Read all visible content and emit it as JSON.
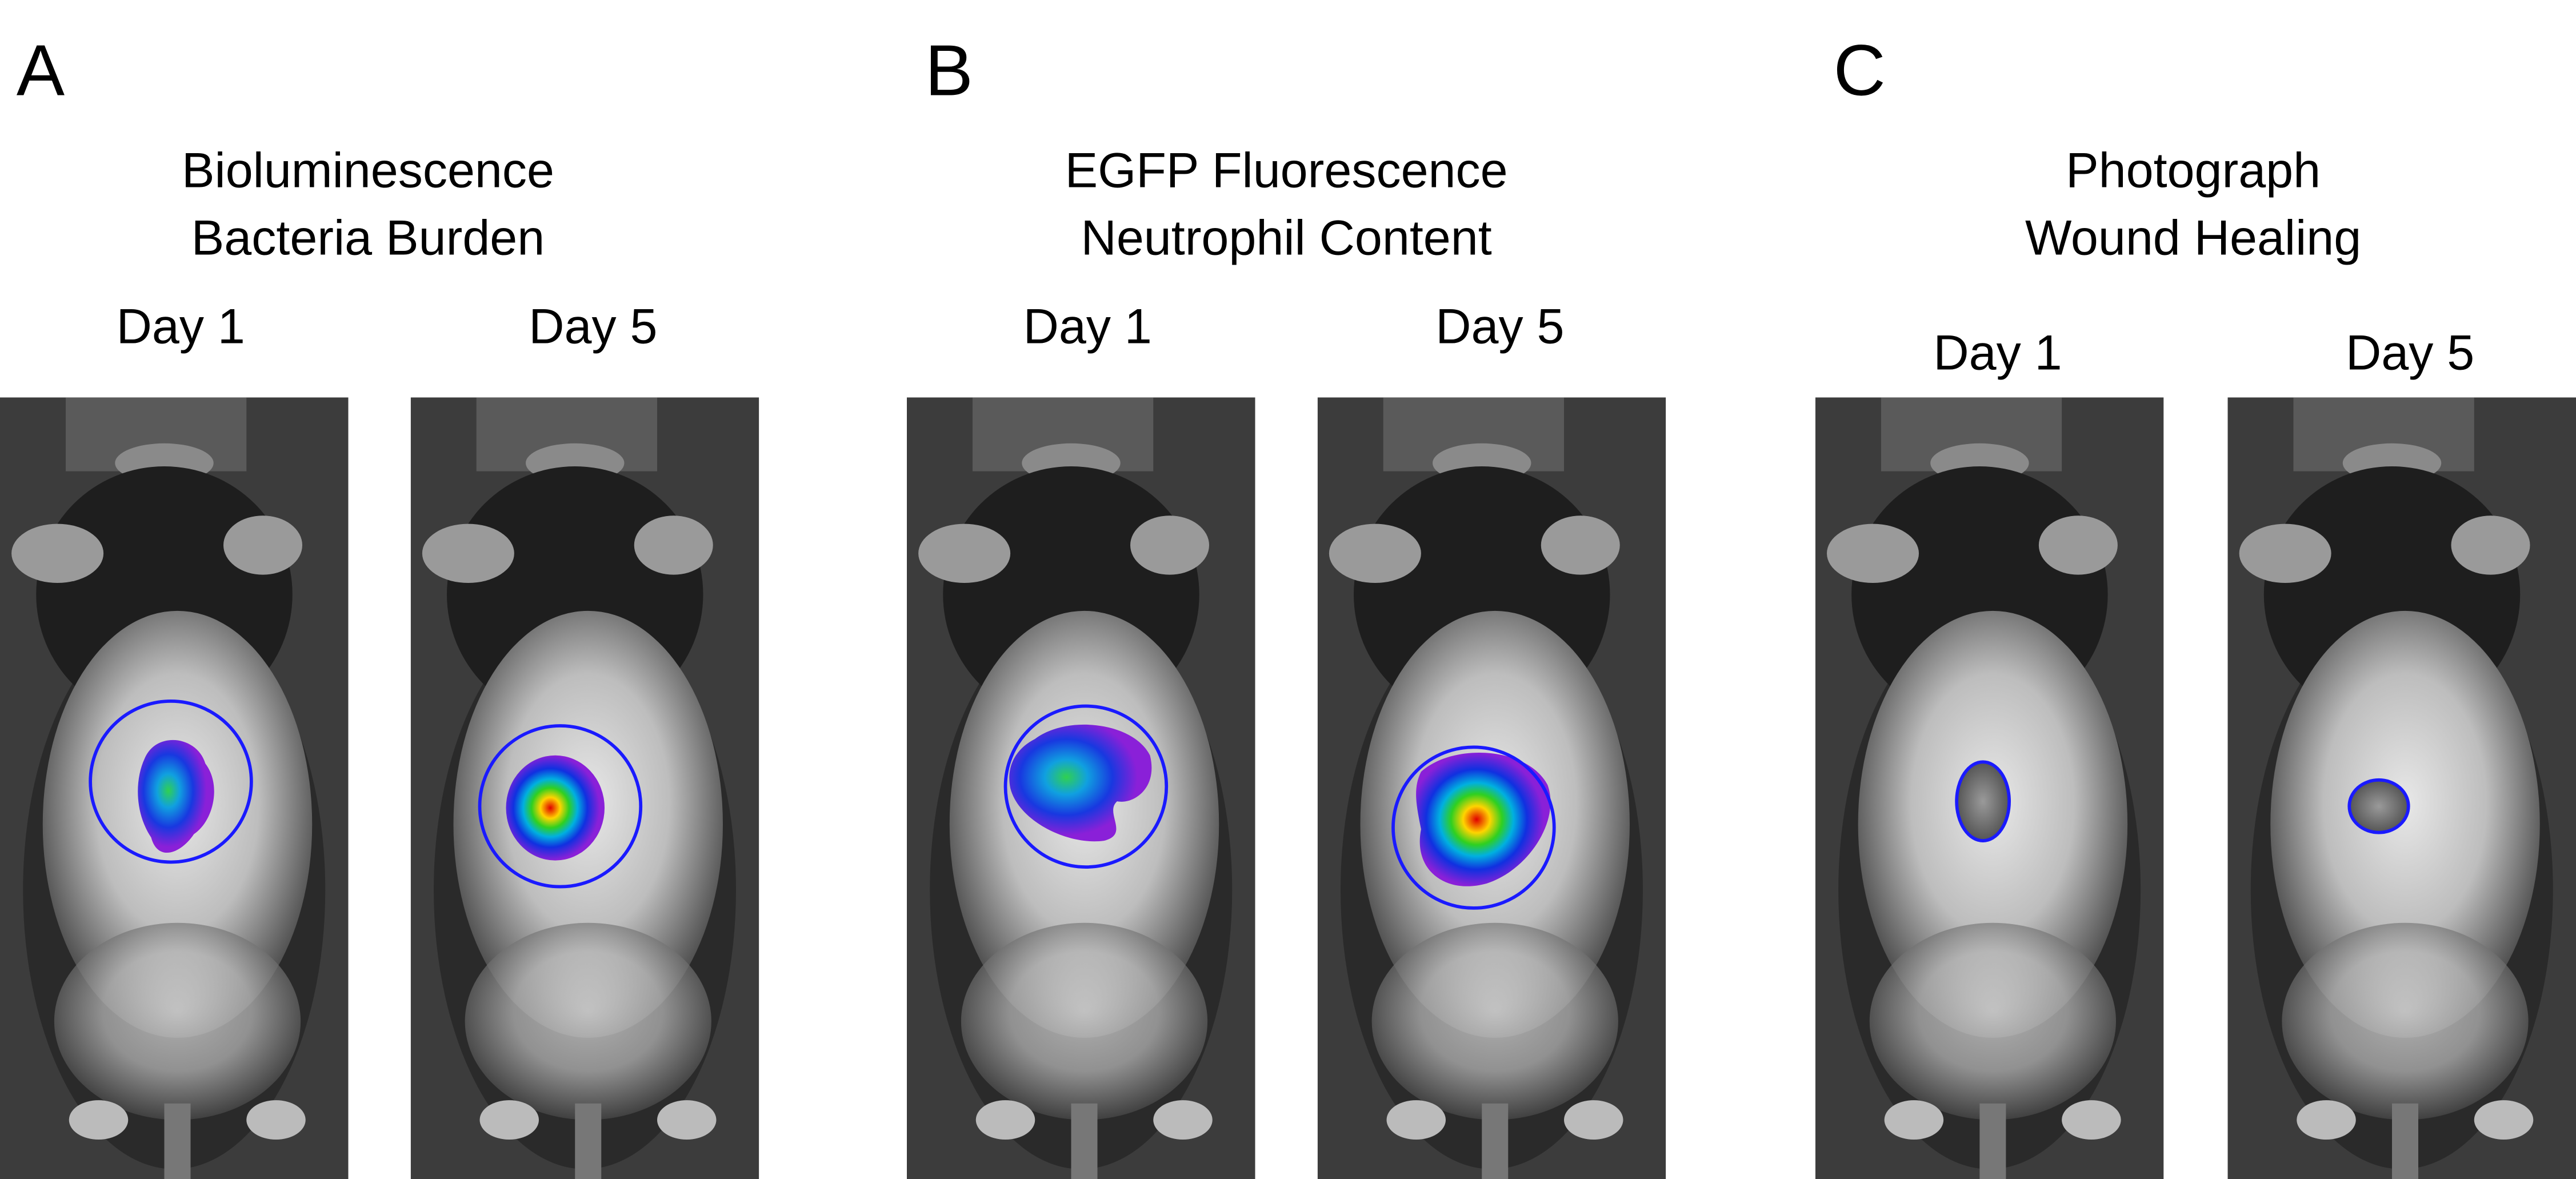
{
  "panels": [
    {
      "letter": "A",
      "title": [
        "Bioluminescence",
        "Bacteria Burden"
      ],
      "labels": [
        "Day 1",
        "Day 5"
      ]
    },
    {
      "letter": "B",
      "title": [
        "EGFP Fluorescence",
        "Neutrophil Content"
      ],
      "labels": [
        "Day 1",
        "Day 5"
      ]
    },
    {
      "letter": "C",
      "title": [
        "Photograph",
        "Wound Healing"
      ],
      "labels": [
        "Day 1",
        "Day 5"
      ]
    }
  ]
}
